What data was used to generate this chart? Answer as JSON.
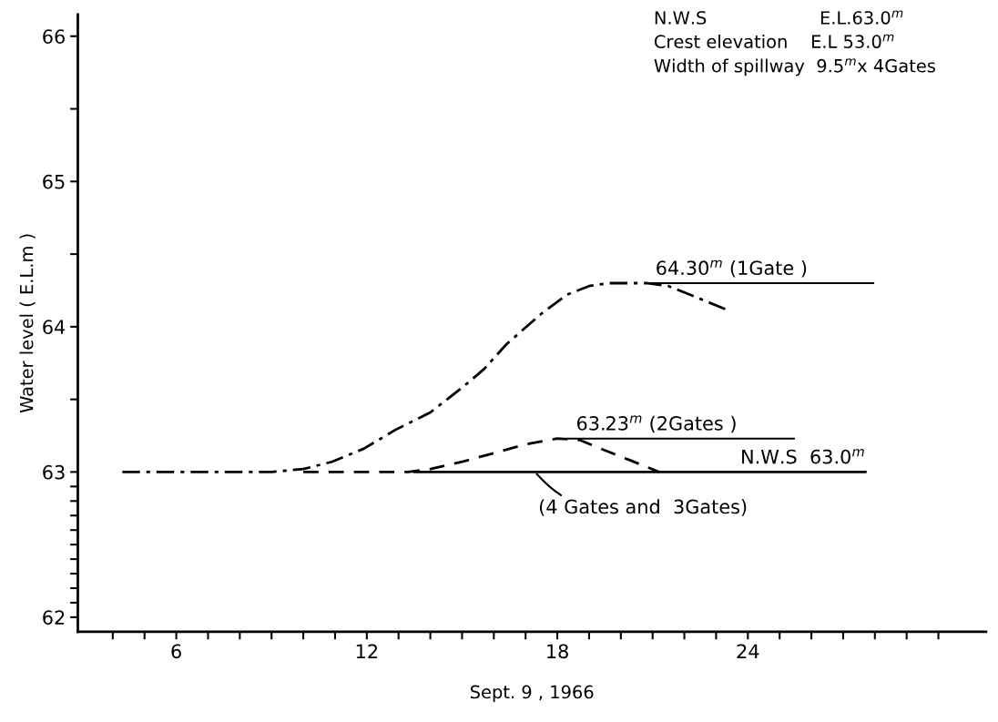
{
  "chart_data": {
    "type": "line",
    "xlabel": "Sept. 9 , 1966",
    "ylabel": "Water level ( E.L.m )",
    "xlim": [
      2.9,
      31.5
    ],
    "ylim": [
      61.9,
      66.15
    ],
    "xticks": [
      {
        "value": 4,
        "label": null
      },
      {
        "value": 5,
        "label": null
      },
      6,
      {
        "value": 7,
        "label": null
      },
      {
        "value": 8,
        "label": null
      },
      {
        "value": 9,
        "label": null
      },
      {
        "value": 10,
        "label": null
      },
      {
        "value": 11,
        "label": null
      },
      12,
      {
        "value": 13,
        "label": null
      },
      {
        "value": 14,
        "label": null
      },
      {
        "value": 15,
        "label": null
      },
      {
        "value": 16,
        "label": null
      },
      {
        "value": 17,
        "label": null
      },
      18,
      {
        "value": 19,
        "label": null
      },
      {
        "value": 20,
        "label": null
      },
      {
        "value": 21,
        "label": null
      },
      {
        "value": 22,
        "label": null
      },
      {
        "value": 23,
        "label": null
      },
      24,
      {
        "value": 25,
        "label": null
      },
      {
        "value": 26,
        "label": null
      },
      {
        "value": 27,
        "label": null
      },
      {
        "value": 28,
        "label": null
      },
      {
        "value": 29,
        "label": null
      },
      {
        "value": 30,
        "label": null
      }
    ],
    "yticks": [
      62,
      {
        "value": 62.1,
        "label": null
      },
      {
        "value": 62.2,
        "label": null
      },
      {
        "value": 62.3,
        "label": null
      },
      {
        "value": 62.4,
        "label": null
      },
      {
        "value": 62.5,
        "label": null
      },
      {
        "value": 62.6,
        "label": null
      },
      {
        "value": 62.7,
        "label": null
      },
      {
        "value": 62.8,
        "label": null
      },
      {
        "value": 62.9,
        "label": null
      },
      63,
      {
        "value": 63.5,
        "label": null
      },
      64,
      {
        "value": 64.5,
        "label": null
      },
      65,
      {
        "value": 65.5,
        "label": null
      },
      66
    ],
    "grid": false,
    "legend": false,
    "series": [
      {
        "color": "#000000",
        "line_style": "dashdot",
        "x": [
          4.3,
          6,
          8,
          9,
          10.0,
          10.9,
          11.9,
          12.9,
          14.0,
          15.0,
          15.7,
          16.4,
          17.5,
          18.3,
          19.0,
          19.6,
          20.2,
          20.8,
          21.5,
          22.3,
          23.3
        ],
        "values": [
          63.0,
          63.0,
          63.0,
          63.0,
          63.02,
          63.07,
          63.16,
          63.29,
          63.41,
          63.58,
          63.71,
          63.88,
          64.09,
          64.22,
          64.28,
          64.3,
          64.3,
          64.3,
          64.28,
          64.21,
          64.12
        ]
      },
      {
        "color": "#000000",
        "line_style": "dashed",
        "x": [
          10.0,
          12.0,
          13.3,
          14.0,
          15.0,
          16.0,
          17.0,
          18.0,
          18.7,
          19.6,
          20.3,
          21.2
        ],
        "values": [
          63.0,
          63.0,
          63.0,
          63.02,
          63.07,
          63.13,
          63.19,
          63.23,
          63.22,
          63.14,
          63.08,
          63.0
        ]
      },
      {
        "color": "#000000",
        "line_style": "solid",
        "x": [
          13.5,
          27.7
        ],
        "values": [
          63.0,
          63.0
        ]
      }
    ],
    "annotations": [
      {
        "text": "64.30$^{m}$ (1Gate )",
        "x": 20.5,
        "y": 64.3
      },
      {
        "text": "63.23$^{m}$ (2Gates )",
        "x": 18.0,
        "y": 63.23
      },
      {
        "text": "N.W.S  63.0$^{m}$",
        "x": 27.7,
        "y": 63.0
      },
      {
        "text": "(4 Gates and  3Gates)",
        "x": 17.3,
        "y": 63.0
      },
      "N.W.S                    E.L.63.0$^{m}$",
      "Crest elevation    E.L 53.0$^{m}$",
      "Width of spillway  9.5$^{m}$x 4Gates"
    ]
  }
}
